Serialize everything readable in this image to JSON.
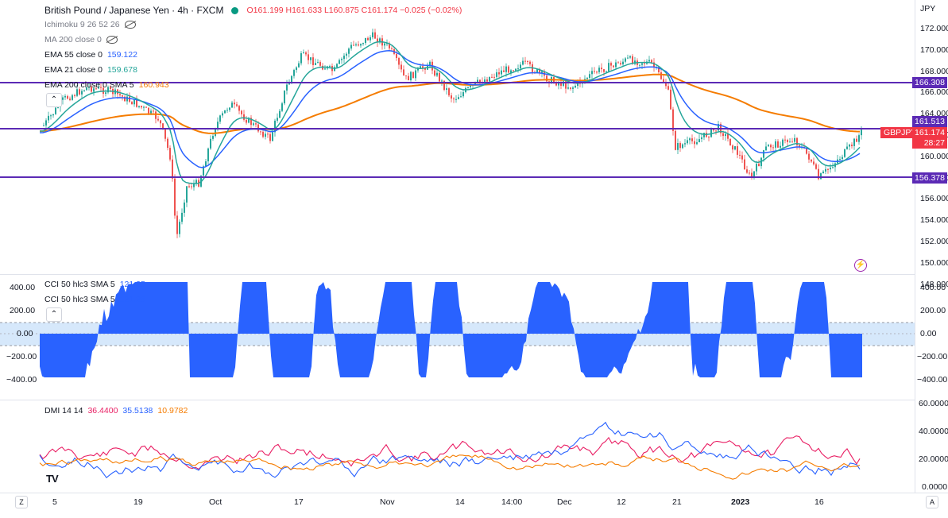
{
  "header": {
    "symbol": "British Pound / Japanese Yen · 4h · FXCM",
    "ohlc": "O161.199 H161.633 L160.875 C161.174 −0.025 (−0.02%)",
    "currency": "JPY"
  },
  "indicators": [
    {
      "label": "Ichimoku 9 26 52 26",
      "value": ""
    },
    {
      "label": "MA 200 close 0",
      "value": ""
    },
    {
      "label": "EMA 55 close 0",
      "value": "159.122"
    },
    {
      "label": "EMA 21 close 0",
      "value": "159.678"
    },
    {
      "label": "EMA 200 close 0 SMA 5",
      "value": "160.943"
    }
  ],
  "price_axis": [
    "172.000",
    "170.000",
    "168.000",
    "166.000",
    "164.000",
    "162.000",
    "160.000",
    "158.000",
    "156.000",
    "154.000",
    "152.000",
    "150.000",
    "148.000"
  ],
  "price_tags": {
    "line_upper": "166.308",
    "line_middle": "161.513",
    "symbol_tag": "GBPJPY",
    "last_price": "161.174",
    "countdown": "28:27",
    "line_lower": "156.378"
  },
  "cci": {
    "label1": "CCI 50 hlc3 SMA 5",
    "value1": "121.25",
    "label2": "CCI 50 hlc3 SMA 5",
    "value2": "121.25",
    "axis": [
      "400.00",
      "200.00",
      "0.00",
      "−200.00",
      "−400.00"
    ]
  },
  "dmi": {
    "label": "DMI 14 14",
    "plus": "36.4400",
    "minus": "35.5138",
    "adx": "10.9782",
    "axis": [
      "60.0000",
      "40.0000",
      "20.0000",
      "0.0000"
    ]
  },
  "time_axis": [
    "5",
    "19",
    "Oct",
    "17",
    "Nov",
    "14",
    "14:00",
    "Dec",
    "12",
    "21",
    "2023",
    "16"
  ],
  "footer": {
    "left_btn": "Z",
    "right_btn": "A"
  },
  "colors": {
    "up": "#26a69a",
    "down": "#ef5350",
    "ema55": "#2962ff",
    "ema21": "#26a69a",
    "ema200": "#f57c00",
    "hline": "#5b2ab5",
    "cci_fill": "#2962ff",
    "dmi_plus": "#e91e63",
    "dmi_minus": "#2962ff",
    "adx": "#f57c00"
  }
}
